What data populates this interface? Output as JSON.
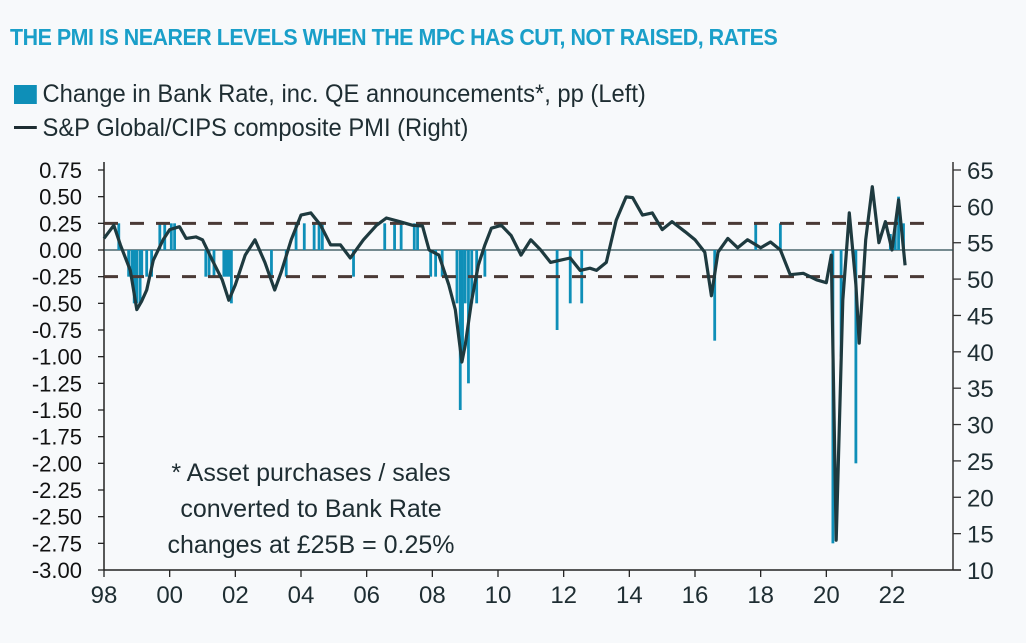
{
  "chart_data": {
    "type": "bar+line",
    "title": "THE PMI IS NEARER LEVELS WHEN THE MPC HAS CUT, NOT RAISED, RATES",
    "legend": [
      {
        "label": "Change in Bank Rate, inc. QE announcements*, pp (Left)",
        "type": "bar",
        "color": "#0e8fb8"
      },
      {
        "label": "S&P Global/CIPS composite PMI (Right)",
        "type": "line",
        "color": "#1e3a3f"
      }
    ],
    "legend_position": "top-left",
    "annotation": [
      "* Asset purchases / sales",
      "converted to Bank Rate",
      "changes at £25B = 0.25%"
    ],
    "left_axis": {
      "ylim": [
        -3.0,
        0.75
      ],
      "ticks": [
        "0.75",
        "0.50",
        "0.25",
        "0.00",
        "-0.25",
        "-0.50",
        "-0.75",
        "-1.00",
        "-1.25",
        "-1.50",
        "-1.75",
        "-2.00",
        "-2.25",
        "-2.50",
        "-2.75",
        "-3.00"
      ],
      "tick_values": [
        0.75,
        0.5,
        0.25,
        0,
        -0.25,
        -0.5,
        -0.75,
        -1,
        -1.25,
        -1.5,
        -1.75,
        -2,
        -2.25,
        -2.5,
        -2.75,
        -3
      ]
    },
    "right_axis": {
      "ylim": [
        10,
        65
      ],
      "ticks": [
        "65",
        "60",
        "55",
        "50",
        "45",
        "40",
        "35",
        "30",
        "25",
        "20",
        "15",
        "10"
      ],
      "tick_values": [
        65,
        60,
        55,
        50,
        45,
        40,
        35,
        30,
        25,
        20,
        15,
        10
      ]
    },
    "x_axis": {
      "xlim": [
        1998,
        2024
      ],
      "ticks": [
        "98",
        "00",
        "02",
        "04",
        "06",
        "08",
        "10",
        "12",
        "14",
        "16",
        "18",
        "20",
        "22"
      ],
      "tick_values": [
        1998,
        2000,
        2002,
        2004,
        2006,
        2008,
        2010,
        2012,
        2014,
        2016,
        2018,
        2020,
        2022
      ]
    },
    "reference_lines": [
      0.25,
      -0.25
    ],
    "bars": [
      {
        "x": 1998.45,
        "v": 0.25
      },
      {
        "x": 1998.75,
        "v": -0.25
      },
      {
        "x": 1998.85,
        "v": -0.25
      },
      {
        "x": 1998.92,
        "v": -0.5
      },
      {
        "x": 1999.0,
        "v": -0.5
      },
      {
        "x": 1999.1,
        "v": -0.5
      },
      {
        "x": 1999.15,
        "v": -0.25
      },
      {
        "x": 1999.3,
        "v": -0.25
      },
      {
        "x": 1999.45,
        "v": -0.25
      },
      {
        "x": 1999.7,
        "v": 0.25
      },
      {
        "x": 1999.85,
        "v": 0.25
      },
      {
        "x": 2000.05,
        "v": 0.25
      },
      {
        "x": 2000.15,
        "v": 0.25
      },
      {
        "x": 2001.1,
        "v": -0.25
      },
      {
        "x": 2001.2,
        "v": -0.25
      },
      {
        "x": 2001.35,
        "v": -0.25
      },
      {
        "x": 2001.65,
        "v": -0.25
      },
      {
        "x": 2001.72,
        "v": -0.25
      },
      {
        "x": 2001.8,
        "v": -0.25
      },
      {
        "x": 2001.88,
        "v": -0.5
      },
      {
        "x": 2003.1,
        "v": -0.25
      },
      {
        "x": 2003.55,
        "v": -0.25
      },
      {
        "x": 2003.85,
        "v": 0.25
      },
      {
        "x": 2004.1,
        "v": 0.25
      },
      {
        "x": 2004.4,
        "v": 0.25
      },
      {
        "x": 2004.55,
        "v": 0.25
      },
      {
        "x": 2004.65,
        "v": 0.25
      },
      {
        "x": 2005.6,
        "v": -0.25
      },
      {
        "x": 2006.55,
        "v": 0.25
      },
      {
        "x": 2006.85,
        "v": 0.25
      },
      {
        "x": 2007.05,
        "v": 0.25
      },
      {
        "x": 2007.45,
        "v": 0.25
      },
      {
        "x": 2007.55,
        "v": 0.25
      },
      {
        "x": 2007.95,
        "v": -0.25
      },
      {
        "x": 2008.1,
        "v": -0.25
      },
      {
        "x": 2008.3,
        "v": -0.25
      },
      {
        "x": 2008.75,
        "v": -0.5
      },
      {
        "x": 2008.85,
        "v": -1.5
      },
      {
        "x": 2008.92,
        "v": -1.0
      },
      {
        "x": 2009.0,
        "v": -0.5
      },
      {
        "x": 2009.1,
        "v": -1.25
      },
      {
        "x": 2009.2,
        "v": -0.5
      },
      {
        "x": 2009.35,
        "v": -0.5
      },
      {
        "x": 2009.6,
        "v": -0.25
      },
      {
        "x": 2011.8,
        "v": -0.75
      },
      {
        "x": 2012.2,
        "v": -0.5
      },
      {
        "x": 2012.55,
        "v": -0.5
      },
      {
        "x": 2016.6,
        "v": -0.85
      },
      {
        "x": 2017.85,
        "v": 0.25
      },
      {
        "x": 2018.6,
        "v": 0.25
      },
      {
        "x": 2020.2,
        "v": -2.75
      },
      {
        "x": 2020.45,
        "v": -1.0
      },
      {
        "x": 2020.9,
        "v": -2.0
      },
      {
        "x": 2021.95,
        "v": 0.15
      },
      {
        "x": 2022.1,
        "v": 0.25
      },
      {
        "x": 2022.2,
        "v": 0.5
      },
      {
        "x": 2022.35,
        "v": 0.25
      }
    ],
    "pmi": [
      [
        1998.0,
        55.6
      ],
      [
        1998.3,
        57.4
      ],
      [
        1998.5,
        54.7
      ],
      [
        1998.8,
        51.2
      ],
      [
        1999.0,
        45.8
      ],
      [
        1999.15,
        47.0
      ],
      [
        1999.3,
        48.5
      ],
      [
        1999.5,
        52.6
      ],
      [
        1999.8,
        55.4
      ],
      [
        2000.0,
        56.8
      ],
      [
        2000.3,
        57.2
      ],
      [
        2000.5,
        55.6
      ],
      [
        2000.8,
        55.8
      ],
      [
        2001.0,
        55.4
      ],
      [
        2001.3,
        52.6
      ],
      [
        2001.6,
        49.9
      ],
      [
        2001.8,
        47.1
      ],
      [
        2002.0,
        49.2
      ],
      [
        2002.3,
        53.3
      ],
      [
        2002.6,
        55.4
      ],
      [
        2002.9,
        52.3
      ],
      [
        2003.2,
        48.5
      ],
      [
        2003.4,
        51.0
      ],
      [
        2003.7,
        55.4
      ],
      [
        2004.0,
        58.8
      ],
      [
        2004.3,
        59.1
      ],
      [
        2004.6,
        57.4
      ],
      [
        2004.9,
        54.7
      ],
      [
        2005.2,
        54.7
      ],
      [
        2005.5,
        52.9
      ],
      [
        2005.9,
        55.4
      ],
      [
        2006.3,
        57.4
      ],
      [
        2006.6,
        58.4
      ],
      [
        2007.0,
        57.9
      ],
      [
        2007.4,
        57.4
      ],
      [
        2007.7,
        57.3
      ],
      [
        2007.9,
        54.0
      ],
      [
        2008.2,
        53.3
      ],
      [
        2008.5,
        49.2
      ],
      [
        2008.7,
        45.8
      ],
      [
        2008.9,
        38.6
      ],
      [
        2009.0,
        40.9
      ],
      [
        2009.2,
        47.1
      ],
      [
        2009.4,
        51.9
      ],
      [
        2009.6,
        54.7
      ],
      [
        2009.8,
        57.0
      ],
      [
        2010.1,
        57.4
      ],
      [
        2010.4,
        56.0
      ],
      [
        2010.7,
        53.3
      ],
      [
        2011.0,
        55.4
      ],
      [
        2011.3,
        54.0
      ],
      [
        2011.6,
        52.3
      ],
      [
        2011.9,
        52.6
      ],
      [
        2012.2,
        52.9
      ],
      [
        2012.5,
        51.2
      ],
      [
        2012.8,
        51.5
      ],
      [
        2013.0,
        51.2
      ],
      [
        2013.3,
        52.3
      ],
      [
        2013.6,
        58.1
      ],
      [
        2013.9,
        61.3
      ],
      [
        2014.1,
        61.2
      ],
      [
        2014.4,
        58.8
      ],
      [
        2014.7,
        59.1
      ],
      [
        2015.0,
        56.8
      ],
      [
        2015.3,
        57.9
      ],
      [
        2015.7,
        56.5
      ],
      [
        2016.0,
        55.4
      ],
      [
        2016.3,
        53.7
      ],
      [
        2016.5,
        47.7
      ],
      [
        2016.7,
        53.7
      ],
      [
        2017.0,
        55.6
      ],
      [
        2017.3,
        54.3
      ],
      [
        2017.6,
        55.4
      ],
      [
        2018.0,
        54.3
      ],
      [
        2018.3,
        55.1
      ],
      [
        2018.6,
        54.0
      ],
      [
        2018.9,
        50.6
      ],
      [
        2019.3,
        50.8
      ],
      [
        2019.7,
        49.9
      ],
      [
        2020.0,
        49.5
      ],
      [
        2020.15,
        53.3
      ],
      [
        2020.3,
        14.1
      ],
      [
        2020.5,
        47.1
      ],
      [
        2020.7,
        59.1
      ],
      [
        2020.9,
        49.2
      ],
      [
        2021.0,
        41.2
      ],
      [
        2021.2,
        55.4
      ],
      [
        2021.4,
        62.7
      ],
      [
        2021.6,
        55.0
      ],
      [
        2021.8,
        57.9
      ],
      [
        2022.0,
        54.0
      ],
      [
        2022.2,
        60.9
      ],
      [
        2022.4,
        51.9
      ]
    ]
  }
}
